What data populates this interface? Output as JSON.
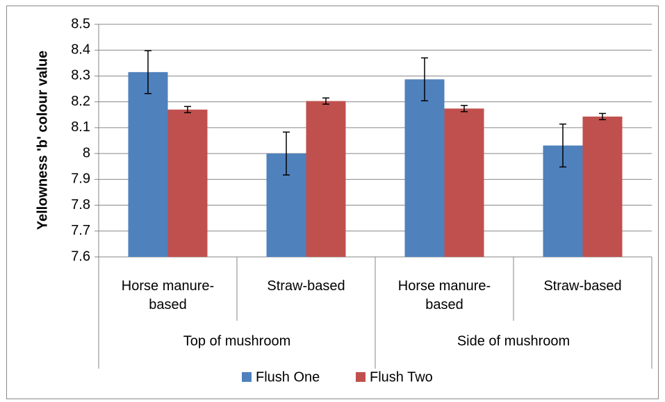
{
  "chart_data": {
    "type": "bar",
    "y_label": "Yellowness 'b' colour value",
    "groups": [
      {
        "name": "Top of mushroom",
        "categories": [
          "Horse manure-based",
          "Straw-based"
        ]
      },
      {
        "name": "Side of mushroom",
        "categories": [
          "Horse manure-based",
          "Straw-based"
        ]
      }
    ],
    "series": [
      {
        "name": "Flush One",
        "color": "#4f81bd",
        "values": [
          8.315,
          8.0,
          8.287,
          8.031
        ],
        "errors": [
          0.083,
          0.083,
          0.083,
          0.083
        ]
      },
      {
        "name": "Flush Two",
        "color": "#c0504d",
        "values": [
          8.17,
          8.203,
          8.174,
          8.143
        ],
        "errors": [
          0.012,
          0.012,
          0.012,
          0.012
        ]
      }
    ],
    "ylim": [
      7.6,
      8.5
    ],
    "yticks": [
      7.6,
      7.7,
      7.8,
      7.9,
      8,
      8.1,
      8.2,
      8.3,
      8.4,
      8.5
    ],
    "grid": true,
    "legend": "bottom"
  }
}
